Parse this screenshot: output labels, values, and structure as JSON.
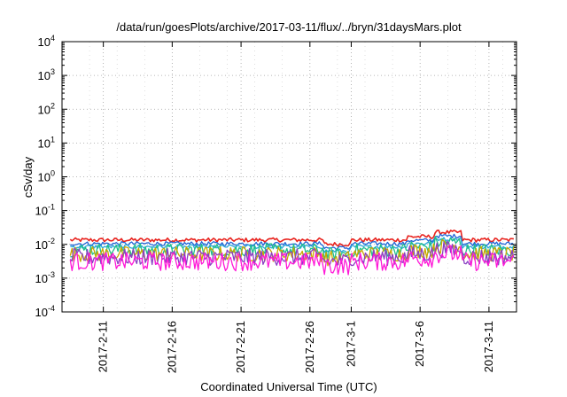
{
  "chart_data": {
    "type": "line",
    "title": "/data/run/goesPlots/archive/2017-03-11/flux/../bryn/31daysMars.plot",
    "xlabel": "Coordinated Universal Time (UTC)",
    "ylabel": "cSv/day",
    "y_scale": "log",
    "ylim": [
      0.0001,
      10000
    ],
    "y_ticks": [
      {
        "base": "10",
        "exp": "-4"
      },
      {
        "base": "10",
        "exp": "-3"
      },
      {
        "base": "10",
        "exp": "-2"
      },
      {
        "base": "10",
        "exp": "-1"
      },
      {
        "base": "10",
        "exp": "0"
      },
      {
        "base": "10",
        "exp": "1"
      },
      {
        "base": "10",
        "exp": "2"
      },
      {
        "base": "10",
        "exp": "3"
      },
      {
        "base": "10",
        "exp": "4"
      }
    ],
    "xlim": [
      "2017-02-08",
      "2017-03-13"
    ],
    "x_ticks": [
      "2017-2-11",
      "2017-2-16",
      "2017-2-21",
      "2017-2-26",
      "2017-3-1",
      "2017-3-6",
      "2017-3-11"
    ],
    "grid": true,
    "legend": "none",
    "series": [
      {
        "color": "#e8231e",
        "base_value": 0.0135
      },
      {
        "color": "#1f63d6",
        "base_value": 0.0105
      },
      {
        "color": "#2aa8d8",
        "base_value": 0.0085
      },
      {
        "color": "#1fbf8a",
        "base_value": 0.0068
      },
      {
        "color": "#c9a800",
        "base_value": 0.0052
      },
      {
        "color": "#8a3fc2",
        "base_value": 0.0042
      },
      {
        "color": "#ff18d8",
        "base_value": 0.0031
      }
    ]
  }
}
